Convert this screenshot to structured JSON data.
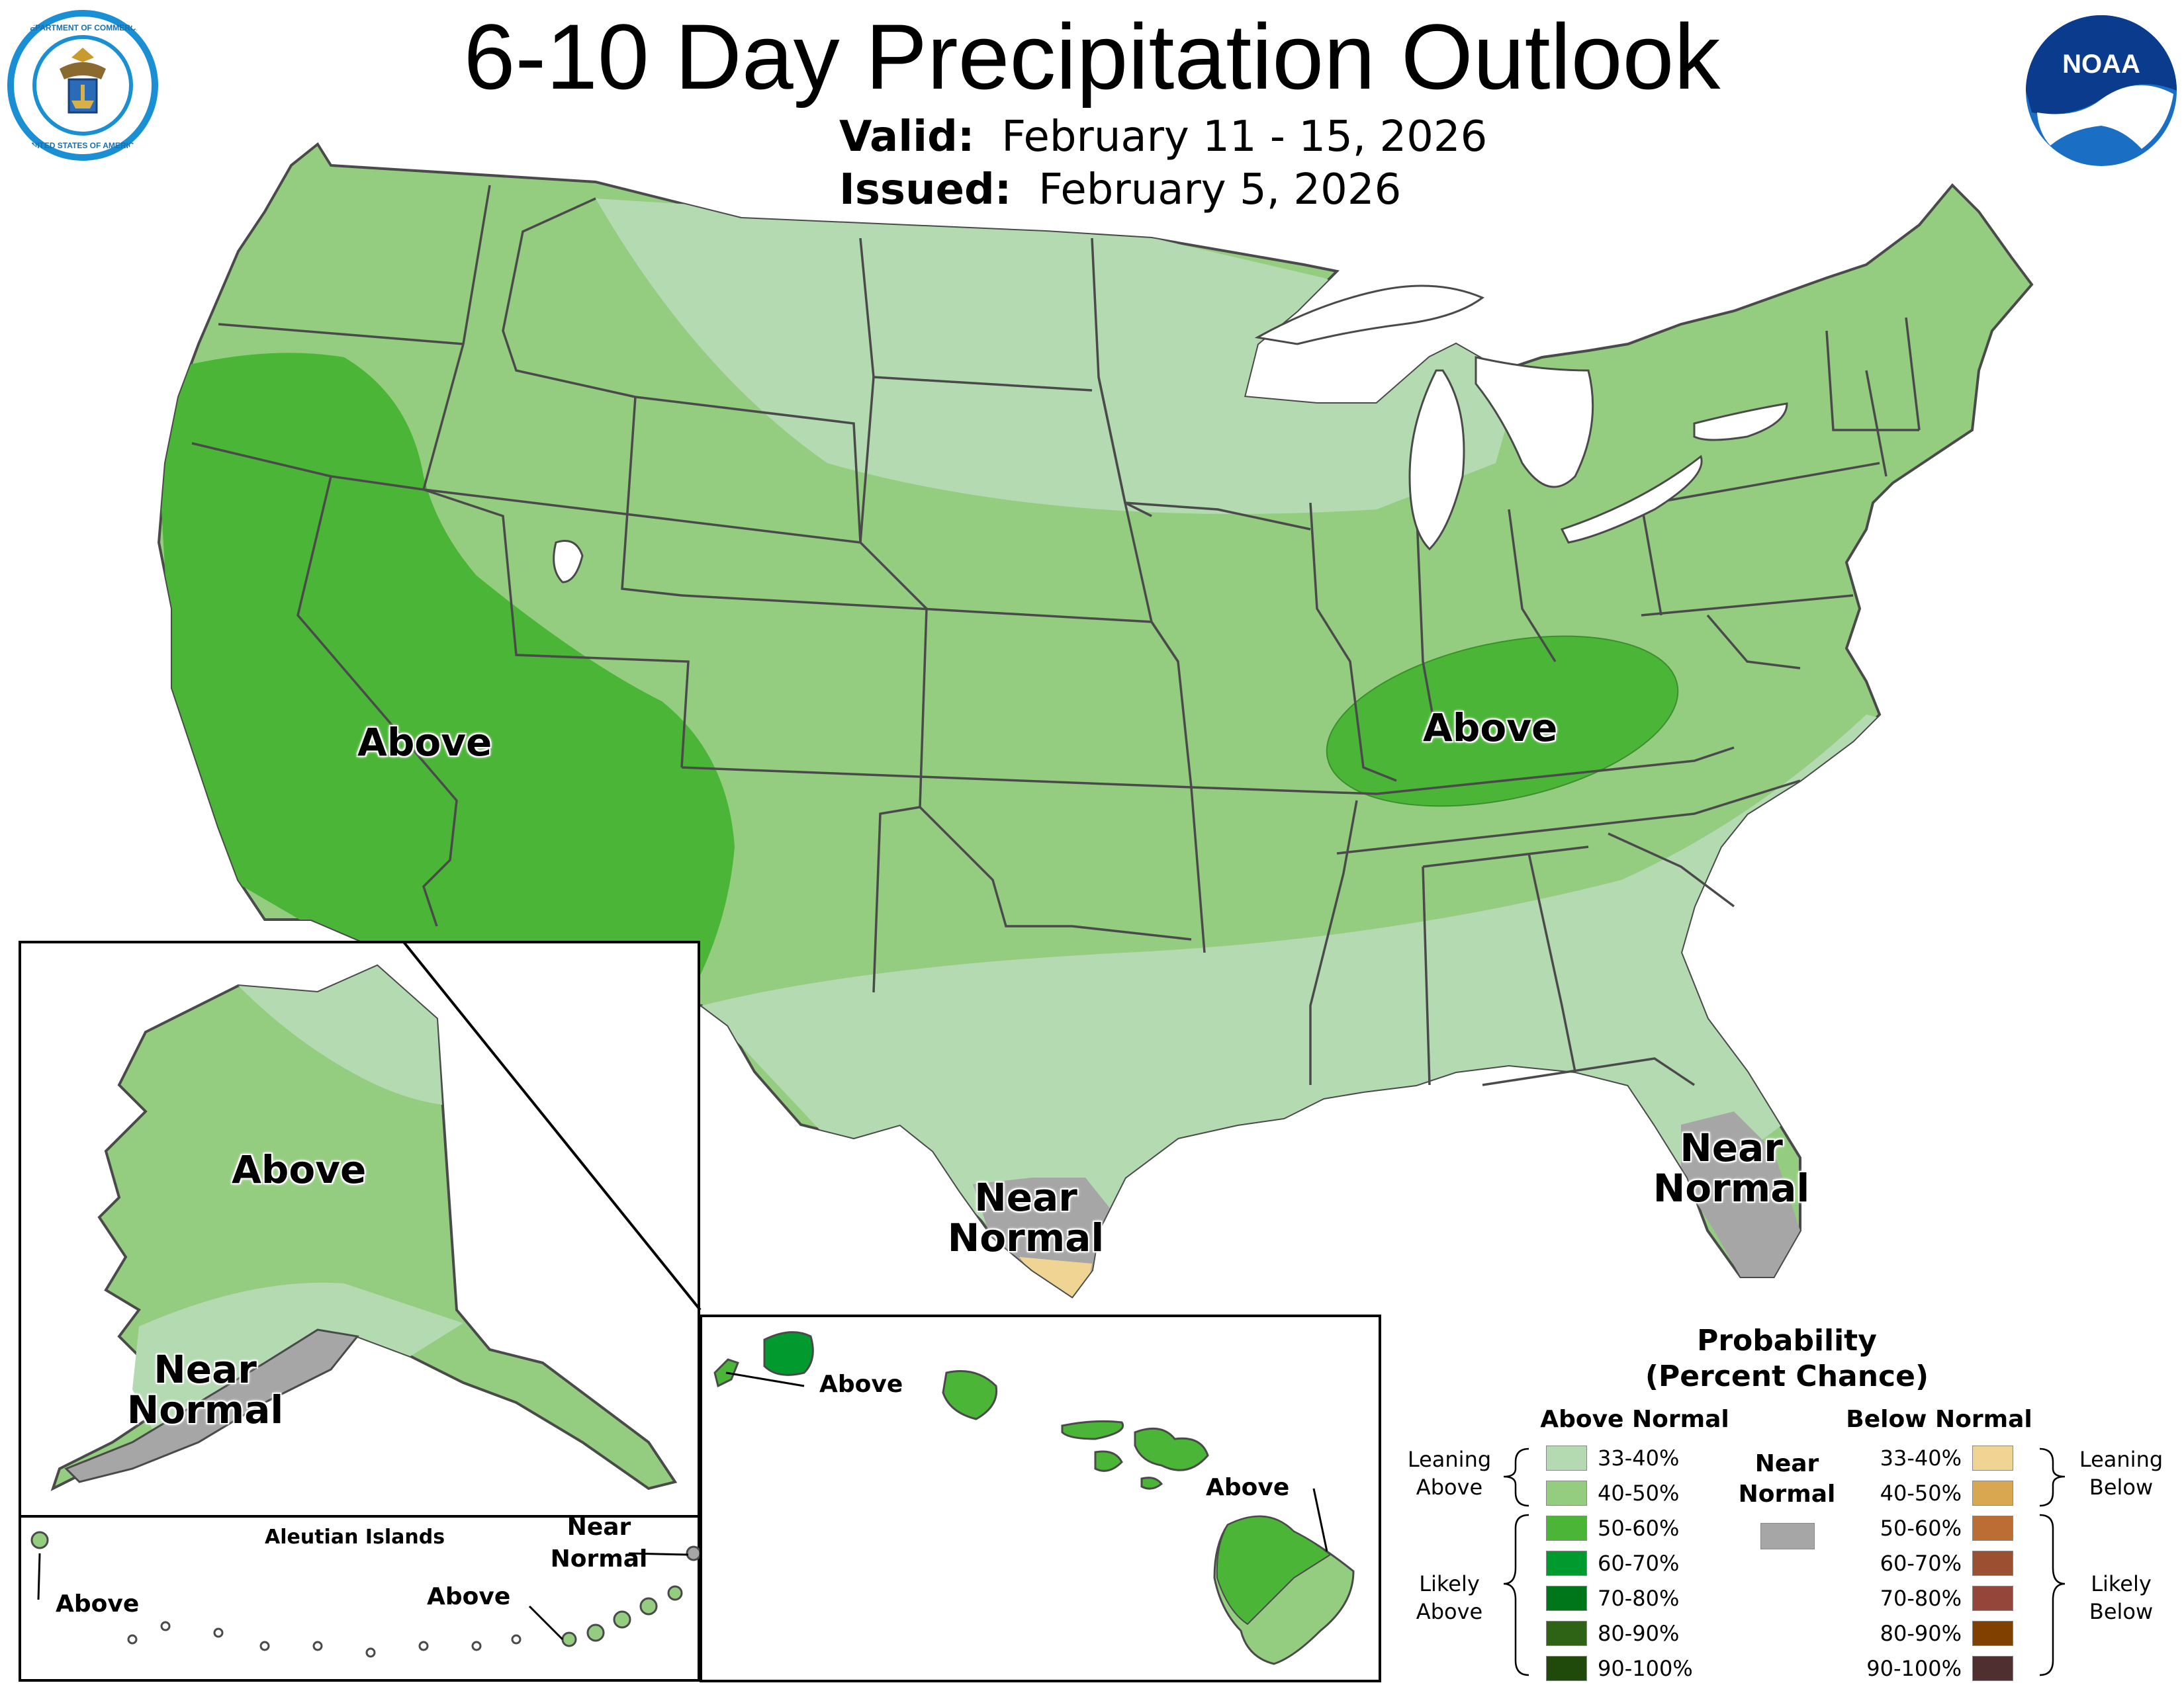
{
  "header": {
    "title": "6-10 Day Precipitation Outlook",
    "valid_label": "Valid:",
    "valid_value": "February 11 - 15, 2026",
    "issued_label": "Issued:",
    "issued_value": "February 5, 2026"
  },
  "logos": {
    "commerce_top": "DEPARTMENT OF COMMERCE",
    "commerce_bottom": "UNITED STATES OF AMERICA",
    "noaa": "NOAA"
  },
  "map_labels": {
    "west_above": "Above",
    "ohio_valley_above": "Above",
    "texas_near_line1": "Near",
    "texas_near_line2": "Normal",
    "florida_near_line1": "Near",
    "florida_near_line2": "Normal",
    "alaska_above": "Above",
    "alaska_near_line1": "Near",
    "alaska_near_line2": "Normal"
  },
  "aleutian": {
    "title": "Aleutian Islands",
    "above_left": "Above",
    "above_right": "Above",
    "near_line1": "Near",
    "near_line2": "Normal"
  },
  "hawaii": {
    "above_kauai": "Above",
    "above_bigisland": "Above"
  },
  "legend": {
    "title_line1": "Probability",
    "title_line2": "(Percent Chance)",
    "above_header": "Above Normal",
    "below_header": "Below Normal",
    "near_line1": "Near",
    "near_line2": "Normal",
    "leaning_above_1": "Leaning",
    "leaning_above_2": "Above",
    "likely_above_1": "Likely",
    "likely_above_2": "Above",
    "leaning_below_1": "Leaning",
    "leaning_below_2": "Below",
    "likely_below_1": "Likely",
    "likely_below_2": "Below",
    "above_rows": [
      {
        "label": "33-40%",
        "color": "#b3dab0"
      },
      {
        "label": "40-50%",
        "color": "#94cd80"
      },
      {
        "label": "50-60%",
        "color": "#4ab536"
      },
      {
        "label": "60-70%",
        "color": "#009a2e"
      },
      {
        "label": "70-80%",
        "color": "#00761b"
      },
      {
        "label": "80-90%",
        "color": "#2e6316"
      },
      {
        "label": "90-100%",
        "color": "#1f4a0b"
      }
    ],
    "below_rows": [
      {
        "label": "33-40%",
        "color": "#f0d493"
      },
      {
        "label": "40-50%",
        "color": "#d8a750"
      },
      {
        "label": "50-60%",
        "color": "#bb6d33"
      },
      {
        "label": "60-70%",
        "color": "#9b5031"
      },
      {
        "label": "70-80%",
        "color": "#934639"
      },
      {
        "label": "80-90%",
        "color": "#804000"
      },
      {
        "label": "90-100%",
        "color": "#4f2f2f"
      }
    ],
    "near_color": "#a6a6a6"
  }
}
